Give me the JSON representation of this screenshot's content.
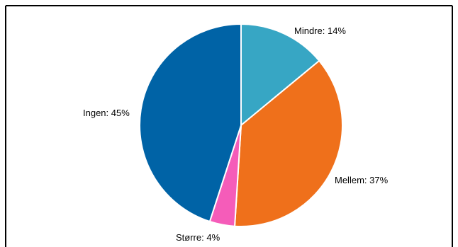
{
  "chart_data": {
    "type": "pie",
    "title": "",
    "start_angle_deg": 0,
    "direction": "clockwise",
    "slices": [
      {
        "name": "Mindre",
        "value": 14,
        "label": "Mindre: 14%",
        "color": "#37a6c4"
      },
      {
        "name": "Mellem",
        "value": 37,
        "label": "Mellem: 37%",
        "color": "#ef701b"
      },
      {
        "name": "Større",
        "value": 4,
        "label": "Større: 4%",
        "color": "#f55cb9"
      },
      {
        "name": "Ingen",
        "value": 45,
        "label": "Ingen: 45%",
        "color": "#0063a6"
      }
    ],
    "slice_border_color": "#ffffff",
    "frame_color": "#000000"
  }
}
